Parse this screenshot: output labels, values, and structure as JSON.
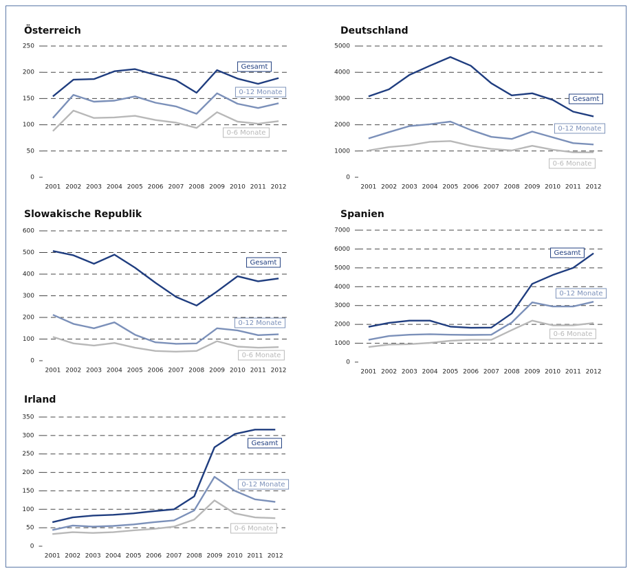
{
  "chart_data": [
    {
      "type": "line",
      "title": "Österreich",
      "categories": [
        "2001",
        "2002",
        "2003",
        "2004",
        "2005",
        "2006",
        "2007",
        "2008",
        "2009",
        "2010",
        "2011",
        "2012"
      ],
      "series": [
        {
          "name": "Gesamt",
          "color": "#1f3d7f",
          "values": [
            154,
            186,
            187,
            202,
            206,
            195,
            185,
            161,
            204,
            188,
            178,
            189
          ]
        },
        {
          "name": "0-12 Monate",
          "color": "#7b90b9",
          "values": [
            113,
            157,
            144,
            146,
            154,
            142,
            135,
            121,
            160,
            140,
            132,
            141
          ]
        },
        {
          "name": "0-6 Monate",
          "color": "#b8b8b8",
          "values": [
            88,
            127,
            113,
            114,
            117,
            109,
            104,
            94,
            124,
            106,
            102,
            107
          ]
        }
      ],
      "ylim": [
        0,
        250
      ],
      "yticks": [
        0,
        50,
        100,
        150,
        200,
        250
      ],
      "grid": true
    },
    {
      "type": "line",
      "title": "Deutschland",
      "categories": [
        "2001",
        "2002",
        "2003",
        "2004",
        "2005",
        "2006",
        "2007",
        "2008",
        "2009",
        "2010",
        "2011",
        "2012"
      ],
      "series": [
        {
          "name": "Gesamt",
          "color": "#1f3d7f",
          "values": [
            3080,
            3350,
            3900,
            4250,
            4580,
            4250,
            3580,
            3120,
            3200,
            2950,
            2500,
            2320
          ]
        },
        {
          "name": "0-12 Monate",
          "color": "#7b90b9",
          "values": [
            1480,
            1720,
            1950,
            2020,
            2120,
            1800,
            1540,
            1460,
            1740,
            1520,
            1300,
            1250
          ]
        },
        {
          "name": "0-6 Monate",
          "color": "#b8b8b8",
          "values": [
            1020,
            1150,
            1220,
            1350,
            1380,
            1200,
            1080,
            1020,
            1200,
            1050,
            950,
            950
          ]
        }
      ],
      "ylim": [
        0,
        5000
      ],
      "yticks": [
        0,
        1000,
        2000,
        3000,
        4000,
        5000
      ],
      "grid": true
    },
    {
      "type": "line",
      "title": "Slowakische Republik",
      "categories": [
        "2001",
        "2002",
        "2003",
        "2004",
        "2005",
        "2006",
        "2007",
        "2008",
        "2009",
        "2010",
        "2011",
        "2012"
      ],
      "series": [
        {
          "name": "Gesamt",
          "color": "#1f3d7f",
          "values": [
            507,
            487,
            448,
            490,
            430,
            360,
            295,
            255,
            320,
            390,
            367,
            380
          ]
        },
        {
          "name": "0-12 Monate",
          "color": "#7b90b9",
          "values": [
            212,
            170,
            150,
            177,
            120,
            85,
            78,
            80,
            150,
            140,
            118,
            122
          ]
        },
        {
          "name": "0-6 Monate",
          "color": "#b8b8b8",
          "values": [
            110,
            80,
            70,
            82,
            60,
            45,
            42,
            45,
            90,
            65,
            60,
            63
          ]
        }
      ],
      "ylim": [
        0,
        600
      ],
      "yticks": [
        0,
        100,
        200,
        300,
        400,
        500,
        600
      ],
      "grid": true
    },
    {
      "type": "line",
      "title": "Spanien",
      "categories": [
        "2001",
        "2002",
        "2003",
        "2004",
        "2005",
        "2006",
        "2007",
        "2008",
        "2009",
        "2010",
        "2011",
        "2012"
      ],
      "series": [
        {
          "name": "Gesamt",
          "color": "#1f3d7f",
          "values": [
            1870,
            2080,
            2200,
            2200,
            1880,
            1820,
            1830,
            2580,
            4150,
            4620,
            5000,
            5770
          ]
        },
        {
          "name": "0-12 Monate",
          "color": "#7b90b9",
          "values": [
            1180,
            1380,
            1450,
            1480,
            1450,
            1440,
            1450,
            2100,
            3170,
            2950,
            2950,
            3200
          ]
        },
        {
          "name": "0-6 Monate",
          "color": "#b8b8b8",
          "values": [
            800,
            930,
            950,
            1020,
            1130,
            1180,
            1180,
            1700,
            2200,
            1950,
            1950,
            2070
          ]
        }
      ],
      "ylim": [
        0,
        7000
      ],
      "yticks": [
        0,
        1000,
        2000,
        3000,
        4000,
        5000,
        6000,
        7000
      ],
      "grid": true
    },
    {
      "type": "line",
      "title": "Irland",
      "categories": [
        "2001",
        "2002",
        "2003",
        "2004",
        "2005",
        "2006",
        "2007",
        "2008",
        "2009",
        "2010",
        "2011",
        "2012"
      ],
      "series": [
        {
          "name": "Gesamt",
          "color": "#1f3d7f",
          "values": [
            65,
            78,
            83,
            85,
            89,
            95,
            100,
            135,
            268,
            304,
            316,
            316
          ]
        },
        {
          "name": "0-12 Monate",
          "color": "#7b90b9",
          "values": [
            44,
            56,
            53,
            55,
            59,
            65,
            70,
            97,
            188,
            150,
            127,
            120
          ]
        },
        {
          "name": "0-6 Monate",
          "color": "#b8b8b8",
          "values": [
            33,
            38,
            36,
            38,
            43,
            47,
            53,
            72,
            124,
            89,
            78,
            76
          ]
        }
      ],
      "ylim": [
        0,
        350
      ],
      "yticks": [
        0,
        50,
        100,
        150,
        200,
        250,
        300,
        350
      ],
      "grid": true
    }
  ]
}
